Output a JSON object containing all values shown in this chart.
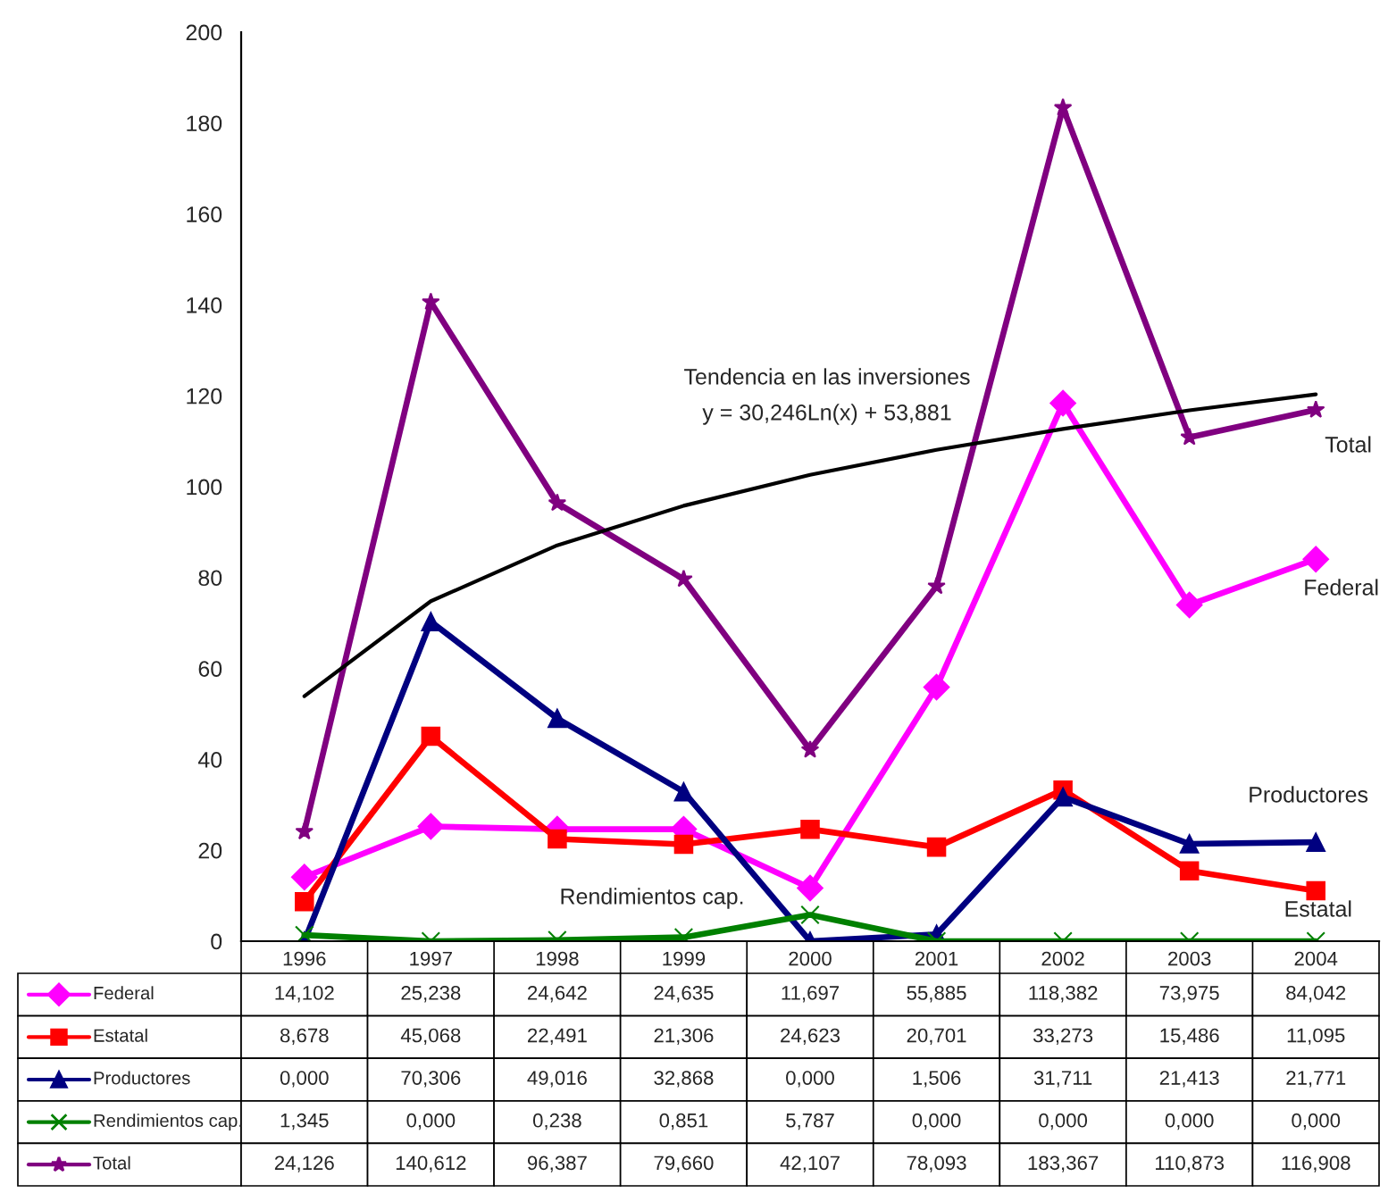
{
  "chart_data": {
    "type": "line",
    "categories": [
      "1996",
      "1997",
      "1998",
      "1999",
      "2000",
      "2001",
      "2002",
      "2003",
      "2004"
    ],
    "ylim": [
      0,
      200
    ],
    "yticks": [
      0,
      20,
      40,
      60,
      80,
      100,
      120,
      140,
      160,
      180,
      200
    ],
    "grid": false,
    "legend": "bottom",
    "series": [
      {
        "name": "Federal",
        "color": "#ff00ff",
        "marker": "diamond",
        "values": [
          14.102,
          25.238,
          24.642,
          24.635,
          11.697,
          55.885,
          118.382,
          73.975,
          84.042
        ],
        "value_labels": [
          "14,102",
          "25,238",
          "24,642",
          "24,635",
          "11,697",
          "55,885",
          "118,382",
          "73,975",
          "84,042"
        ]
      },
      {
        "name": "Estatal",
        "color": "#ff0000",
        "marker": "square",
        "values": [
          8.678,
          45.068,
          22.491,
          21.306,
          24.623,
          20.701,
          33.273,
          15.486,
          11.095
        ],
        "value_labels": [
          "8,678",
          "45,068",
          "22,491",
          "21,306",
          "24,623",
          "20,701",
          "33,273",
          "15,486",
          "11,095"
        ]
      },
      {
        "name": "Productores",
        "color": "#000080",
        "marker": "triangle",
        "values": [
          0.0,
          70.306,
          49.016,
          32.868,
          0.0,
          1.506,
          31.711,
          21.413,
          21.771
        ],
        "value_labels": [
          "0,000",
          "70,306",
          "49,016",
          "32,868",
          "0,000",
          "1,506",
          "31,711",
          "21,413",
          "21,771"
        ]
      },
      {
        "name": "Rendimientos cap.",
        "color": "#008000",
        "marker": "cross",
        "values": [
          1.345,
          0.0,
          0.238,
          0.851,
          5.787,
          0.0,
          0.0,
          0.0,
          0.0
        ],
        "value_labels": [
          "1,345",
          "0,000",
          "0,238",
          "0,851",
          "5,787",
          "0,000",
          "0,000",
          "0,000",
          "0,000"
        ]
      },
      {
        "name": "Total",
        "color": "#800080",
        "marker": "star",
        "values": [
          24.126,
          140.612,
          96.387,
          79.66,
          42.107,
          78.093,
          183.367,
          110.873,
          116.908
        ],
        "value_labels": [
          "24,126",
          "140,612",
          "96,387",
          "79,660",
          "42,107",
          "78,093",
          "183,367",
          "110,873",
          "116,908"
        ]
      },
      {
        "type": "line",
        "color": "#000000",
        "marker": "none",
        "values": [
          53.9,
          74.8,
          87.1,
          95.8,
          102.6,
          108.1,
          112.7,
          116.8,
          120.3
        ]
      }
    ],
    "annotations": [
      "Tendencia en las inversiones",
      "y = 30,246Ln(x) + 53,881",
      "Total",
      "Federal",
      "Productores",
      "Estatal",
      "Rendimientos cap."
    ]
  }
}
